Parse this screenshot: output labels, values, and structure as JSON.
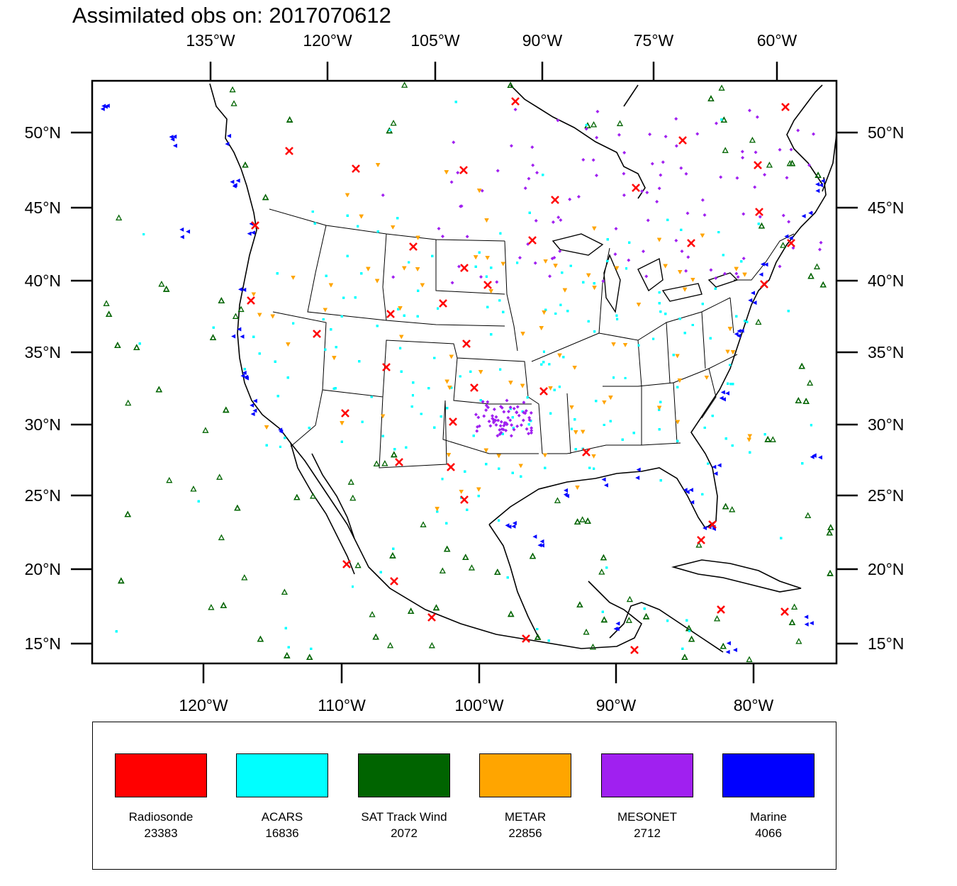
{
  "title": "Assimilated obs on: 2017070612",
  "axes": {
    "top": [
      "135°W",
      "120°W",
      "105°W",
      "90°W",
      "75°W",
      "60°W"
    ],
    "bottom": [
      "120°W",
      "110°W",
      "100°W",
      "90°W",
      "80°W"
    ],
    "left": [
      "50°N",
      "45°N",
      "40°N",
      "35°N",
      "30°N",
      "25°N",
      "20°N",
      "15°N"
    ],
    "right": [
      "50°N",
      "45°N",
      "40°N",
      "35°N",
      "30°N",
      "25°N",
      "20°N",
      "15°N"
    ]
  },
  "colors": {
    "radiosonde": "#ff0000",
    "acars": "#00ffff",
    "sat_track_wind": "#006400",
    "metar": "#ffa500",
    "mesonet": "#a020f0",
    "marine": "#0000ff",
    "land": "#ffffff",
    "coastline": "#000000"
  },
  "legend": [
    {
      "name": "Radiosonde",
      "count": "23383",
      "color": "#ff0000",
      "icon": "x-mark-icon"
    },
    {
      "name": "ACARS",
      "count": "16836",
      "color": "#00ffff",
      "icon": "square-dot-icon"
    },
    {
      "name": "SAT Track Wind",
      "count": "2072",
      "color": "#006400",
      "icon": "triangle-up-icon"
    },
    {
      "name": "METAR",
      "count": "22856",
      "color": "#ffa500",
      "icon": "triangle-down-icon"
    },
    {
      "name": "MESONET",
      "count": "2712",
      "color": "#a020f0",
      "icon": "diamond-icon"
    },
    {
      "name": "Marine",
      "count": "4066",
      "color": "#0000ff",
      "icon": "triangle-left-icon"
    }
  ]
}
